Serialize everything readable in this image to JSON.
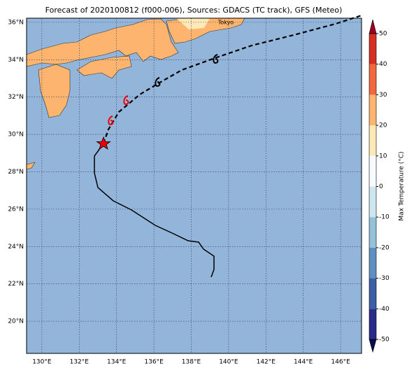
{
  "title": "Forecast of 2020100812 (f000-006), Sources: GDACS (TC track), GFS (Meteo)",
  "map": {
    "city": "Tokyo",
    "xlim": [
      129.18,
      147.12
    ],
    "ylim": [
      18.28,
      36.22
    ],
    "xticks": [
      {
        "value": 130,
        "label": "130°E"
      },
      {
        "value": 132,
        "label": "132°E"
      },
      {
        "value": 134,
        "label": "134°E"
      },
      {
        "value": 136,
        "label": "136°E"
      },
      {
        "value": 138,
        "label": "138°E"
      },
      {
        "value": 140,
        "label": "140°E"
      },
      {
        "value": 142,
        "label": "142°E"
      },
      {
        "value": 144,
        "label": "144°E"
      },
      {
        "value": 146,
        "label": "146°E"
      }
    ],
    "yticks": [
      {
        "value": 20,
        "label": "20°N"
      },
      {
        "value": 22,
        "label": "22°N"
      },
      {
        "value": 24,
        "label": "24°N"
      },
      {
        "value": 26,
        "label": "26°N"
      },
      {
        "value": 28,
        "label": "28°N"
      },
      {
        "value": 30,
        "label": "30°N"
      },
      {
        "value": 32,
        "label": "32°N"
      },
      {
        "value": 34,
        "label": "34°N"
      },
      {
        "value": 36,
        "label": "36°N"
      }
    ]
  },
  "colorbar": {
    "label": "Max Temperature (°C)",
    "ticks": [
      -50,
      -40,
      -30,
      -20,
      -10,
      0,
      10,
      20,
      30,
      40,
      50
    ],
    "colors": [
      "#2a2a8a",
      "#3b5fa6",
      "#5d90c1",
      "#94c1da",
      "#cde6ef",
      "#f8fbfd",
      "#fde9b8",
      "#fdb46e",
      "#f1683c",
      "#d42f22"
    ],
    "under_color": "#0b0b52",
    "over_color": "#9b0022"
  }
}
